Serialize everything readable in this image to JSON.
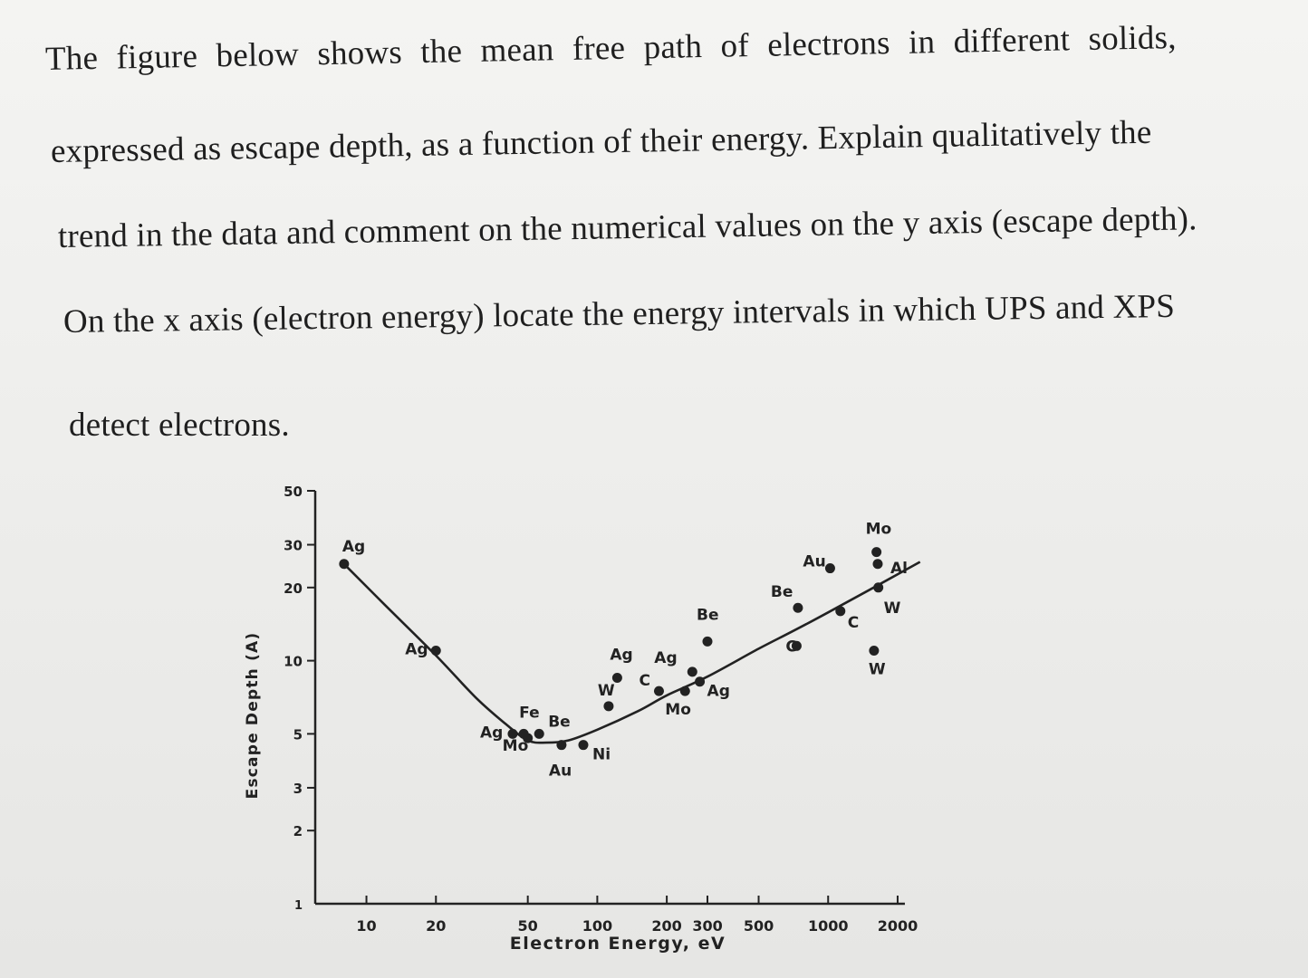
{
  "question": {
    "lines": [
      "The figure below shows the mean free path of electrons in different solids,",
      "expressed as escape depth, as a function of their energy. Explain qualitatively the",
      "trend in the data and comment on the numerical values on the y axis (escape depth).",
      "On the x axis (electron energy) locate the energy intervals in which UPS and XPS",
      "detect electrons."
    ]
  },
  "chart_data": {
    "type": "scatter",
    "xlabel": "Electron Energy, eV",
    "ylabel": "Escape Depth (A)",
    "x_scale": "log",
    "y_scale": "log",
    "xlim": [
      6,
      2600
    ],
    "ylim": [
      1,
      50
    ],
    "x_ticks": [
      10,
      20,
      50,
      100,
      200,
      300,
      500,
      1000,
      2000
    ],
    "x_tick_labels": [
      "10",
      "20",
      "50",
      "100",
      "200 300",
      "500",
      "1000",
      "2000"
    ],
    "y_ticks": [
      2,
      3,
      5,
      10,
      20,
      30,
      50
    ],
    "y_tick_labels": [
      "2",
      "3",
      "5",
      "10",
      "20",
      "30",
      "50"
    ],
    "points": [
      {
        "label": "Ag",
        "x": 8,
        "y": 25
      },
      {
        "label": "Ag",
        "x": 20,
        "y": 11
      },
      {
        "label": "Ag",
        "x": 43,
        "y": 5
      },
      {
        "label": "Fe",
        "x": 48,
        "y": 5
      },
      {
        "label": "Mo",
        "x": 50,
        "y": 4.8
      },
      {
        "label": "Be",
        "x": 56,
        "y": 5
      },
      {
        "label": "Au",
        "x": 70,
        "y": 4.5
      },
      {
        "label": "Ni",
        "x": 87,
        "y": 4.5
      },
      {
        "label": "W",
        "x": 112,
        "y": 6.5
      },
      {
        "label": "Ag",
        "x": 122,
        "y": 8.5
      },
      {
        "label": "C",
        "x": 185,
        "y": 7.5
      },
      {
        "label": "Mo",
        "x": 240,
        "y": 7.5
      },
      {
        "label": "Ag",
        "x": 258,
        "y": 9
      },
      {
        "label": "Ag",
        "x": 278,
        "y": 8.2
      },
      {
        "label": "Be",
        "x": 300,
        "y": 12
      },
      {
        "label": "Be",
        "x": 740,
        "y": 16.5
      },
      {
        "label": "C",
        "x": 730,
        "y": 11.5
      },
      {
        "label": "Au",
        "x": 1020,
        "y": 24
      },
      {
        "label": "C",
        "x": 1130,
        "y": 16
      },
      {
        "label": "W",
        "x": 1580,
        "y": 11
      },
      {
        "label": "Mo",
        "x": 1620,
        "y": 28
      },
      {
        "label": "Al",
        "x": 1640,
        "y": 25
      },
      {
        "label": "W",
        "x": 1650,
        "y": 20
      }
    ],
    "curve": {
      "x": [
        8,
        12,
        20,
        30,
        40,
        50,
        60,
        75,
        100,
        150,
        200,
        300,
        500,
        700,
        1000,
        1500,
        2500
      ],
      "y": [
        25,
        17,
        10.5,
        7,
        5.5,
        4.7,
        4.6,
        4.7,
        5.2,
        6.2,
        7.2,
        8.6,
        11.2,
        13.2,
        15.8,
        19.5,
        25.5
      ]
    }
  }
}
